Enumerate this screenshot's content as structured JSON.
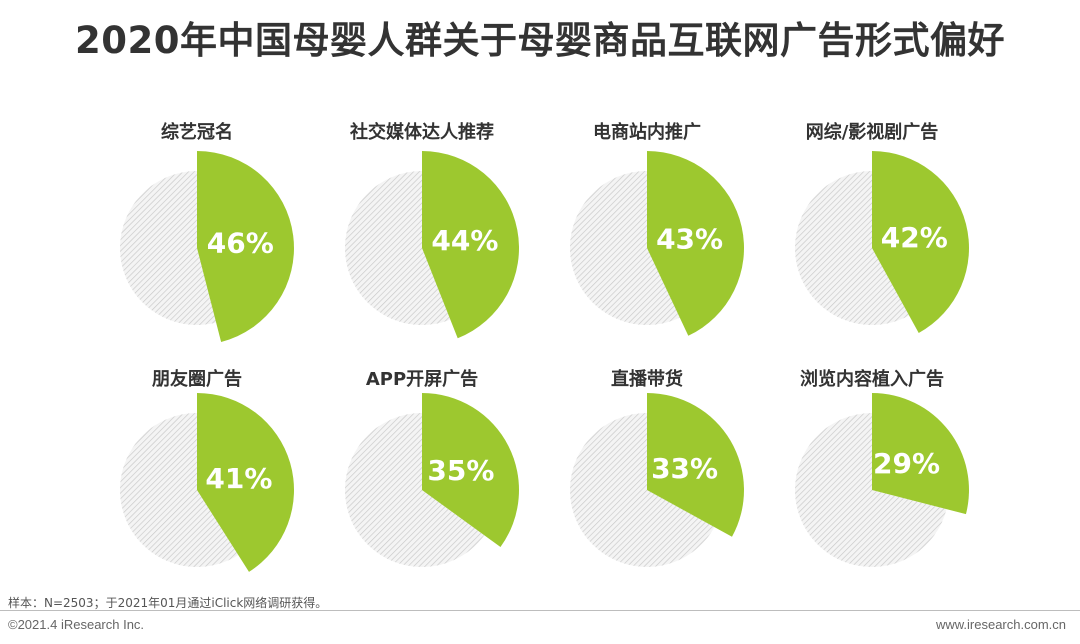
{
  "title": "2020年中国母婴人群关于母婴商品互联网广告形式偏好",
  "colors": {
    "accent": "#9dc82f",
    "remainder_stripe": "#c8c8c8",
    "remainder_bg": "#f4f4f4",
    "text": "#333333"
  },
  "chart_data": {
    "type": "pie",
    "title": "2020年中国母婴人群关于母婴商品互联网广告形式偏好",
    "unit": "%",
    "items": [
      {
        "category": "综艺冠名",
        "value": 46,
        "label": "46%"
      },
      {
        "category": "社交媒体达人推荐",
        "value": 44,
        "label": "44%"
      },
      {
        "category": "电商站内推广",
        "value": 43,
        "label": "43%"
      },
      {
        "category": "网综/影视剧广告",
        "value": 42,
        "label": "42%"
      },
      {
        "category": "朋友圈广告",
        "value": 41,
        "label": "41%"
      },
      {
        "category": "APP开屏广告",
        "value": 35,
        "label": "35%"
      },
      {
        "category": "直播带货",
        "value": 33,
        "label": "33%"
      },
      {
        "category": "浏览内容植入广告",
        "value": 29,
        "label": "29%"
      }
    ]
  },
  "footnote": "样本：N=2503；于2021年01月通过iClick网络调研获得。",
  "footer": {
    "copyright": "©2021.4 iResearch Inc.",
    "website": "www.iresearch.com.cn"
  }
}
